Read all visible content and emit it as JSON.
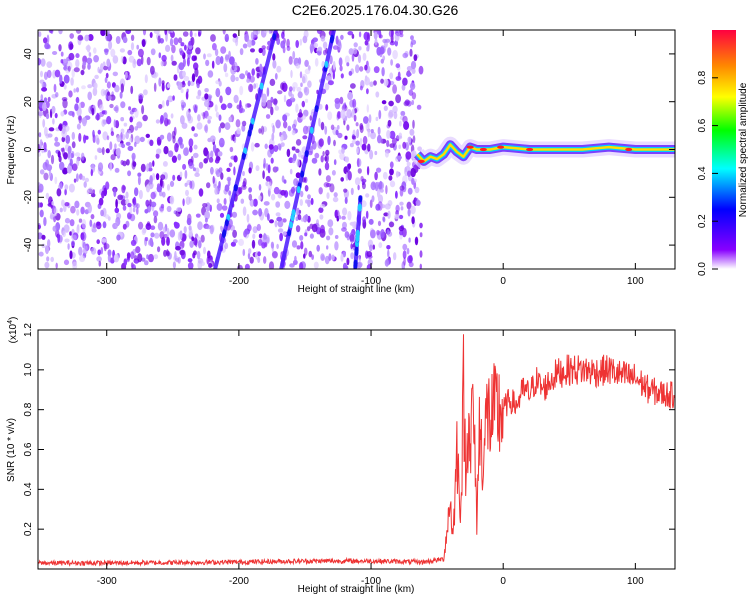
{
  "title": "C2E6.2025.176.04.30.G26",
  "chart_data": [
    {
      "type": "heatmap",
      "xlabel": "Height of straight line (km)",
      "ylabel": "Frequency (Hz)",
      "xlim": [
        -352,
        130
      ],
      "ylim": [
        -50,
        50
      ],
      "xticks": [
        -300,
        -200,
        -100,
        0,
        100
      ],
      "yticks": [
        -40,
        -20,
        0,
        20,
        40
      ],
      "colorbar": {
        "label": "Normalized spectral amplitude",
        "range": [
          0,
          1
        ],
        "ticks": [
          0.0,
          0.2,
          0.4,
          0.6,
          0.8
        ],
        "tick_labels": [
          "0.0",
          "0.2",
          "0.4",
          "0.6",
          "0.8"
        ],
        "colormap": [
          "#ffffff",
          "#8800ff",
          "#0000ff",
          "#00ffff",
          "#00ff00",
          "#ffff00",
          "#ff8800",
          "#ff0040"
        ]
      },
      "noise_region_x": [
        -352,
        -62
      ],
      "streaks": [
        {
          "x": [
            -218,
            -172
          ],
          "y": [
            -50,
            50
          ]
        },
        {
          "x": [
            -168,
            -128
          ],
          "y": [
            -50,
            50
          ]
        },
        {
          "x": [
            -112,
            -108
          ],
          "y": [
            -50,
            -20
          ]
        }
      ],
      "carrier": {
        "x": [
          -65,
          -60,
          -55,
          -50,
          -45,
          -40,
          -35,
          -30,
          -25,
          -20,
          -10,
          0,
          20,
          40,
          60,
          80,
          100,
          130
        ],
        "y": [
          -2,
          -5,
          -3,
          -4,
          -2,
          2,
          -1,
          -3,
          1,
          0,
          0,
          1,
          0,
          0,
          0,
          1,
          0,
          0
        ]
      }
    },
    {
      "type": "line",
      "xlabel": "Height of straight line (km)",
      "ylabel": "SNR (10 * v/v)",
      "y_multiplier": "(x10",
      "y_multiplier_exp": "4",
      "y_multiplier_close": ")",
      "xlim": [
        -352,
        130
      ],
      "ylim": [
        0,
        1.2
      ],
      "xticks": [
        -300,
        -200,
        -100,
        0,
        100
      ],
      "yticks": [
        0.2,
        0.4,
        0.6,
        0.8,
        1.0,
        1.2
      ],
      "ytick_labels": [
        "0.2",
        "0.4",
        "0.6",
        "0.8",
        "1.0",
        "1.2"
      ],
      "series": [
        {
          "color": "#ee3333",
          "x": [
            -352,
            -300,
            -200,
            -150,
            -100,
            -60,
            -45,
            -40,
            -38,
            -35,
            -32,
            -30,
            -28,
            -26,
            -25,
            -23,
            -20,
            -18,
            -15,
            -12,
            -10,
            -5,
            0,
            5,
            10,
            15,
            20,
            25,
            30,
            40,
            50,
            60,
            70,
            80,
            90,
            100,
            110,
            120,
            130
          ],
          "y": [
            0.03,
            0.03,
            0.035,
            0.04,
            0.04,
            0.035,
            0.05,
            0.35,
            0.15,
            0.6,
            0.3,
            0.9,
            0.4,
            0.95,
            0.55,
            0.85,
            0.25,
            0.7,
            0.55,
            0.8,
            0.75,
            0.78,
            0.8,
            0.85,
            0.82,
            0.9,
            0.88,
            0.95,
            0.9,
            0.98,
            1.0,
            1.0,
            0.99,
            1.0,
            0.97,
            0.96,
            0.9,
            0.88,
            0.87
          ]
        }
      ]
    }
  ]
}
